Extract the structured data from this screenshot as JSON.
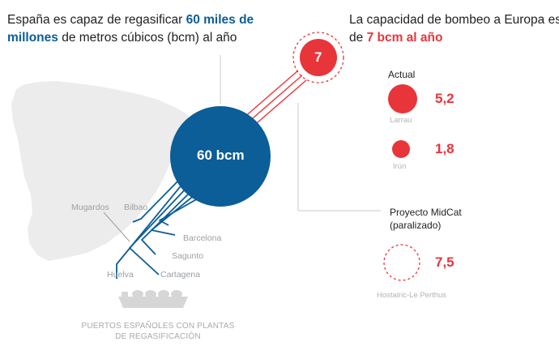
{
  "left_header": {
    "part1": "España es capaz de regasificar ",
    "highlight_a": "60 miles de",
    "highlight_b": "millones",
    "part2": " de metros cúbicos (bcm) al año"
  },
  "right_header": {
    "line1": "La capacidad de bombeo a Europa es",
    "line2_prefix": "de ",
    "highlight": "7 bcm al año"
  },
  "main_circle": {
    "label": "60 bcm",
    "value": 60,
    "color": "#0b5e97"
  },
  "export_circle": {
    "label": "7",
    "value": 7,
    "color": "#e8353a"
  },
  "ports": [
    "Mugardos",
    "Bilbao",
    "Barcelona",
    "Sagunto",
    "Huelva",
    "Cartagena"
  ],
  "actual": {
    "title": "Actual",
    "items": [
      {
        "name": "Larrau",
        "value": "5,2"
      },
      {
        "name": "Irún",
        "value": "1,8"
      }
    ]
  },
  "midcat": {
    "title_line1": "Proyecto MidCat",
    "title_line2": "(paralizado)",
    "name": "Hostalric-Le Perthus",
    "value": "7,5"
  },
  "caption": {
    "line1": "PUERTOS ESPAÑOLES CON PLANTAS",
    "line2": "DE REGASIFICACIÓN"
  },
  "colors": {
    "blue": "#0b5e97",
    "red": "#e8353a",
    "map": "#ececec",
    "guide": "#c9c9c9",
    "port_text": "#9aa0a6"
  }
}
